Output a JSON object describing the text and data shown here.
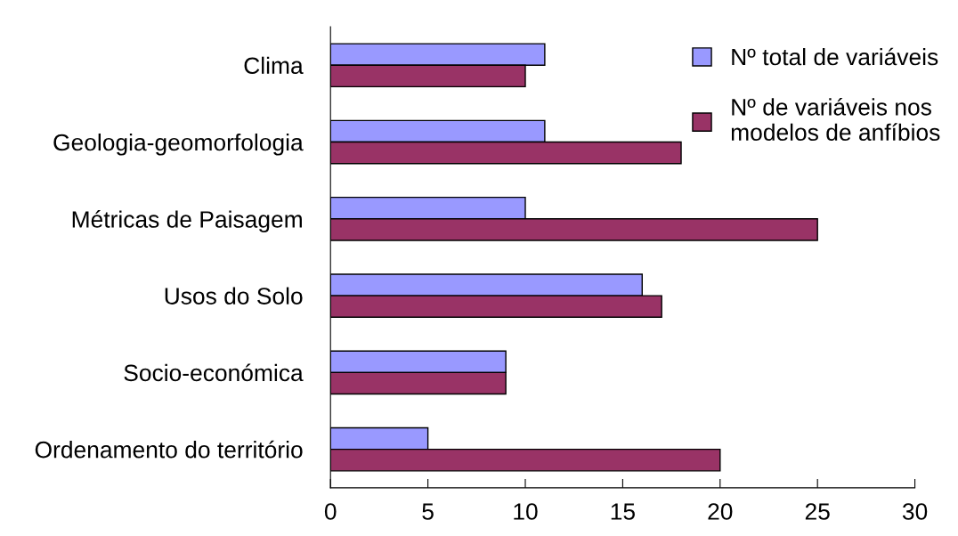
{
  "chart_data": {
    "type": "bar",
    "orientation": "horizontal",
    "categories": [
      "Clima",
      "Geologia-geomorfologia",
      "Métricas de Paisagem",
      "Usos do Solo",
      "Socio-económica",
      "Ordenamento do território"
    ],
    "series": [
      {
        "name": "Nº total de variáveis",
        "color": "#9999ff",
        "values": [
          11,
          11,
          10,
          16,
          9,
          5
        ]
      },
      {
        "name": "Nº de variáveis nos\nmodelos de anfíbios",
        "color": "#993366",
        "values": [
          10,
          18,
          25,
          17,
          9,
          20
        ]
      }
    ],
    "xlim": [
      0,
      30
    ],
    "xticks": [
      0,
      5,
      10,
      15,
      20,
      25,
      30
    ],
    "grid": false,
    "legend": "top right"
  }
}
